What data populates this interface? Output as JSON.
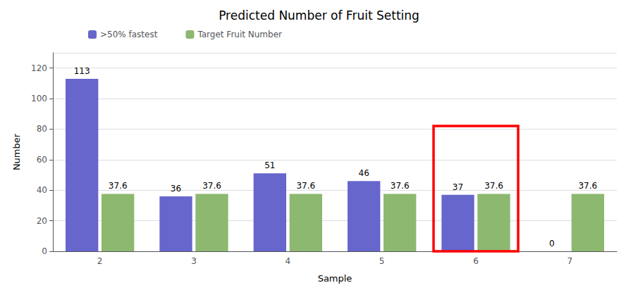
{
  "chart_data": {
    "type": "bar",
    "title": "Predicted Number of Fruit Setting",
    "xlabel": "Sample",
    "ylabel": "Number",
    "categories": [
      2,
      3,
      4,
      5,
      6,
      7
    ],
    "series": [
      {
        "name": ">50% fastest",
        "color": "#6666CC",
        "values": [
          113,
          36,
          51,
          46,
          37,
          0
        ]
      },
      {
        "name": "Target Fruit Number",
        "color": "#8DB870",
        "values": [
          37.6,
          37.6,
          37.6,
          37.6,
          37.6,
          37.6
        ]
      }
    ],
    "ylim": [
      0,
      130
    ],
    "yticks": [
      0,
      20,
      40,
      60,
      80,
      100,
      120
    ],
    "grid": true,
    "legend": "upper left",
    "data_labels": true,
    "highlight": {
      "category": 6,
      "top": 82,
      "color": "red"
    }
  }
}
